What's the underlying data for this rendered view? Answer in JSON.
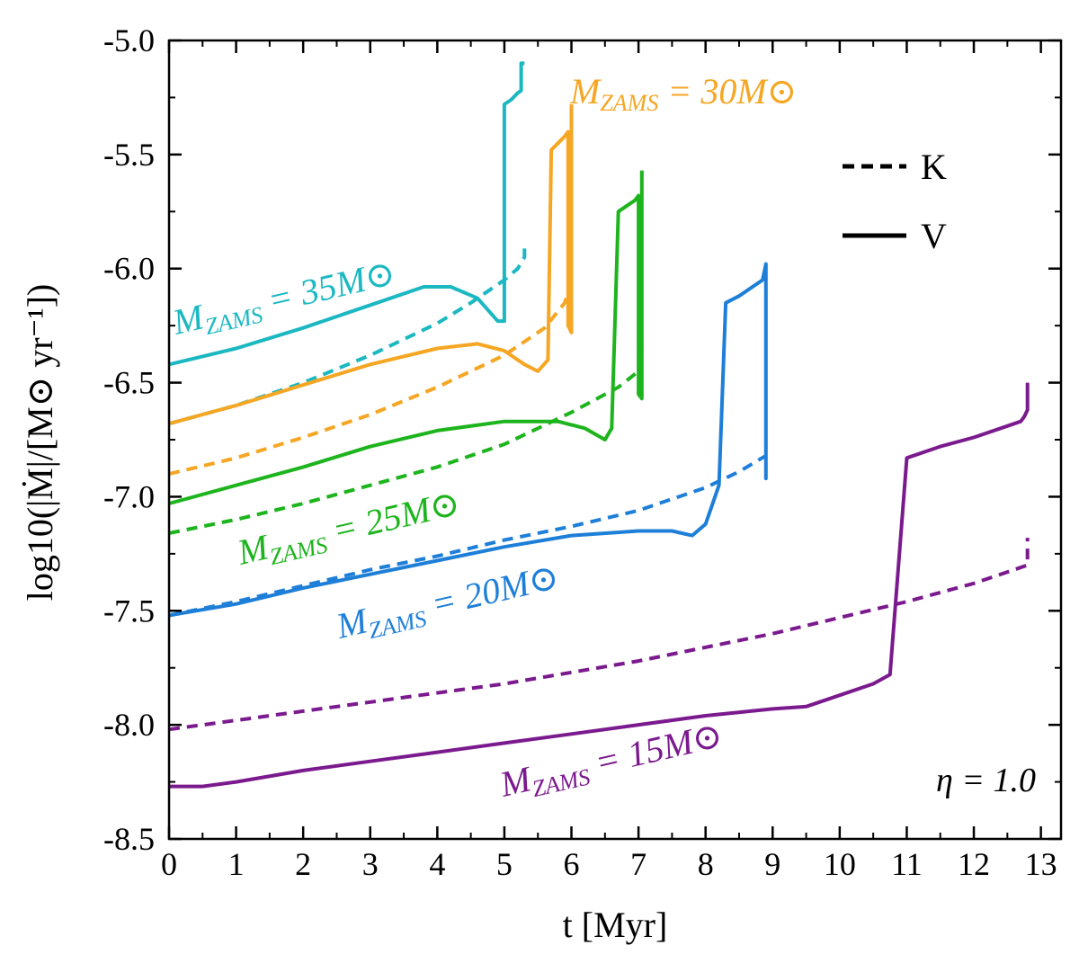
{
  "chart_data": {
    "type": "line",
    "title": "",
    "xlabel": "t  [Myr]",
    "ylabel": "log10(|Ṁ|/[M⊙ yr⁻¹])",
    "xlim": [
      0,
      13.3
    ],
    "ylim": [
      -8.5,
      -5.0
    ],
    "xticks": [
      0,
      1,
      2,
      3,
      4,
      5,
      6,
      7,
      8,
      9,
      10,
      11,
      12,
      13
    ],
    "xtick_labels": [
      "0",
      "1",
      "2",
      "3",
      "4",
      "5",
      "6",
      "7",
      "8",
      "9",
      "10",
      "11",
      "12",
      "13"
    ],
    "yticks": [
      -8.5,
      -8.0,
      -7.5,
      -7.0,
      -6.5,
      -6.0,
      -5.5,
      -5.0
    ],
    "ytick_labels": [
      "-8.5",
      "-8.0",
      "-7.5",
      "-7.0",
      "-6.5",
      "-6.0",
      "-5.5",
      "-5.0"
    ],
    "grid": false,
    "legend": {
      "position": "top-right",
      "entries": [
        {
          "label": "K",
          "style": "dashed"
        },
        {
          "label": "V",
          "style": "solid"
        }
      ]
    },
    "annotation": "η = 1.0",
    "series": [
      {
        "name": "MZAMS = 35M⊙ (V)",
        "mass_label": "MZAMS = 35M⊙",
        "model": "V",
        "style": "solid",
        "color": "#1BB8C2",
        "x": [
          0,
          1,
          2,
          3,
          3.8,
          4.2,
          4.6,
          4.9,
          5.0,
          5.0,
          5.1,
          5.2,
          5.25,
          5.25,
          5.3
        ],
        "y": [
          -6.42,
          -6.35,
          -6.26,
          -6.16,
          -6.08,
          -6.08,
          -6.13,
          -6.23,
          -6.23,
          -5.28,
          -5.26,
          -5.23,
          -5.22,
          -5.1,
          -5.1
        ]
      },
      {
        "name": "MZAMS = 35M⊙ (K)",
        "mass_label": "MZAMS = 35M⊙",
        "model": "K",
        "style": "dashed",
        "color": "#1BB8C2",
        "x": [
          0,
          1,
          2,
          3,
          4,
          4.5,
          5.0,
          5.2,
          5.3,
          5.3
        ],
        "y": [
          -6.68,
          -6.6,
          -6.5,
          -6.38,
          -6.24,
          -6.15,
          -6.05,
          -6.0,
          -5.95,
          -5.9
        ]
      },
      {
        "name": "MZAMS = 30M⊙ (V)",
        "mass_label": "MZAMS = 30M⊙",
        "model": "V",
        "style": "solid",
        "color": "#F5A623",
        "x": [
          0,
          1,
          2,
          3,
          4,
          4.6,
          5.0,
          5.3,
          5.5,
          5.65,
          5.7,
          5.8,
          5.9,
          5.95,
          5.95,
          6.0,
          6.0
        ],
        "y": [
          -6.68,
          -6.6,
          -6.51,
          -6.42,
          -6.35,
          -6.33,
          -6.36,
          -6.42,
          -6.45,
          -6.4,
          -5.48,
          -5.45,
          -5.42,
          -5.4,
          -6.25,
          -6.28,
          -5.28
        ]
      },
      {
        "name": "MZAMS = 30M⊙ (K)",
        "mass_label": "MZAMS = 30M⊙",
        "model": "K",
        "style": "dashed",
        "color": "#F5A623",
        "x": [
          0,
          1,
          2,
          3,
          4,
          5,
          5.6,
          5.9,
          6.0
        ],
        "y": [
          -6.9,
          -6.83,
          -6.74,
          -6.64,
          -6.52,
          -6.38,
          -6.26,
          -6.15,
          -6.05
        ]
      },
      {
        "name": "MZAMS = 25M⊙ (V)",
        "mass_label": "MZAMS = 25M⊙",
        "model": "V",
        "style": "solid",
        "color": "#1DB41D",
        "x": [
          0,
          1,
          2,
          3,
          4,
          5,
          5.8,
          6.2,
          6.5,
          6.6,
          6.7,
          6.8,
          6.95,
          7.0,
          7.0,
          7.05,
          7.05
        ],
        "y": [
          -7.03,
          -6.95,
          -6.87,
          -6.78,
          -6.71,
          -6.67,
          -6.67,
          -6.7,
          -6.75,
          -6.7,
          -5.75,
          -5.73,
          -5.7,
          -5.68,
          -6.55,
          -6.57,
          -5.57
        ]
      },
      {
        "name": "MZAMS = 25M⊙ (K)",
        "mass_label": "MZAMS = 25M⊙",
        "model": "K",
        "style": "dashed",
        "color": "#1DB41D",
        "x": [
          0,
          1,
          2,
          3,
          4,
          5,
          6,
          6.7,
          7.0,
          7.05
        ],
        "y": [
          -7.16,
          -7.1,
          -7.03,
          -6.95,
          -6.87,
          -6.77,
          -6.63,
          -6.52,
          -6.45,
          -6.33
        ]
      },
      {
        "name": "MZAMS = 20M⊙ (V)",
        "mass_label": "MZAMS = 20M⊙",
        "model": "V",
        "style": "solid",
        "color": "#1E7FD8",
        "x": [
          0,
          1,
          2,
          3,
          4,
          5,
          6,
          7,
          7.5,
          7.8,
          8.0,
          8.2,
          8.3,
          8.5,
          8.7,
          8.85,
          8.9,
          8.9,
          8.9
        ],
        "y": [
          -7.52,
          -7.47,
          -7.4,
          -7.34,
          -7.28,
          -7.22,
          -7.17,
          -7.15,
          -7.15,
          -7.17,
          -7.12,
          -6.95,
          -6.15,
          -6.12,
          -6.08,
          -6.05,
          -5.98,
          -6.92,
          -6.68
        ]
      },
      {
        "name": "MZAMS = 20M⊙ (K)",
        "mass_label": "MZAMS = 20M⊙",
        "model": "K",
        "style": "dashed",
        "color": "#1E7FD8",
        "x": [
          0,
          1,
          2,
          3,
          4,
          5,
          6,
          7,
          8,
          8.5,
          8.9
        ],
        "y": [
          -7.52,
          -7.46,
          -7.39,
          -7.32,
          -7.26,
          -7.19,
          -7.13,
          -7.06,
          -6.96,
          -6.89,
          -6.82
        ]
      },
      {
        "name": "MZAMS = 15M⊙ (V)",
        "mass_label": "MZAMS = 15M⊙",
        "model": "V",
        "style": "solid",
        "color": "#7B1A8E",
        "x": [
          0,
          0.5,
          1,
          2,
          3,
          4,
          5,
          6,
          7,
          8,
          9,
          9.5,
          10,
          10.5,
          10.75,
          10.85,
          11.0,
          11.5,
          12,
          12.5,
          12.7,
          12.75,
          12.8,
          12.8
        ],
        "y": [
          -8.27,
          -8.27,
          -8.25,
          -8.2,
          -8.16,
          -8.12,
          -8.08,
          -8.04,
          -8.0,
          -7.96,
          -7.93,
          -7.92,
          -7.87,
          -7.82,
          -7.78,
          -7.4,
          -6.83,
          -6.78,
          -6.74,
          -6.69,
          -6.67,
          -6.65,
          -6.62,
          -6.5
        ]
      },
      {
        "name": "MZAMS = 15M⊙ (K)",
        "mass_label": "MZAMS = 15M⊙",
        "model": "K",
        "style": "dashed",
        "color": "#7B1A8E",
        "x": [
          0,
          1,
          2,
          3,
          4,
          5,
          6,
          7,
          8,
          9,
          10,
          11,
          12,
          12.5,
          12.8,
          12.8
        ],
        "y": [
          -8.02,
          -7.98,
          -7.94,
          -7.9,
          -7.86,
          -7.82,
          -7.77,
          -7.72,
          -7.66,
          -7.6,
          -7.53,
          -7.46,
          -7.38,
          -7.33,
          -7.3,
          -7.18
        ]
      }
    ]
  },
  "labels": {
    "m35": {
      "prefix": "M",
      "sub": "ZAMS",
      "rest": " = 35M",
      "sun": "⊙",
      "color": "#1BB8C2"
    },
    "m30": {
      "prefix": "M",
      "sub": "ZAMS",
      "rest": " = 30M",
      "sun": "⊙",
      "color": "#F5A623"
    },
    "m25": {
      "prefix": "M",
      "sub": "ZAMS",
      "rest": " = 25M",
      "sun": "⊙",
      "color": "#1DB41D"
    },
    "m20": {
      "prefix": "M",
      "sub": "ZAMS",
      "rest": " = 20M",
      "sun": "⊙",
      "color": "#1E7FD8"
    },
    "m15": {
      "prefix": "M",
      "sub": "ZAMS",
      "rest": " = 15M",
      "sun": "⊙",
      "color": "#7B1A8E"
    }
  }
}
